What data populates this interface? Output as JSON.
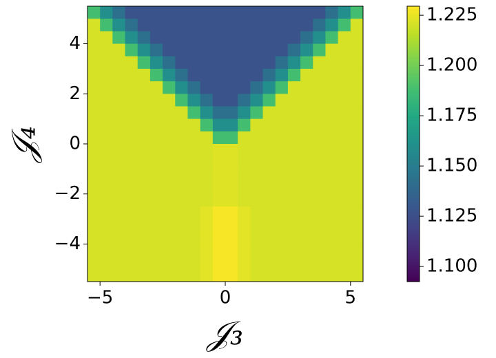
{
  "chart_data": {
    "type": "heatmap",
    "cmap": "viridis",
    "xlabel": "𝒥₃",
    "ylabel": "𝒥₄",
    "xlim": [
      -5.5,
      5.5
    ],
    "ylim": [
      -5.5,
      5.5
    ],
    "xticks": [
      {
        "value": -5,
        "label": "−5"
      },
      0,
      5
    ],
    "yticks": [
      {
        "value": -4,
        "label": "−4"
      },
      {
        "value": -2,
        "label": "−2"
      },
      0,
      2,
      4
    ],
    "clim": [
      1.0925,
      1.2295
    ],
    "cticks": [
      {
        "value": 1.1,
        "label": "1.100"
      },
      1.125,
      {
        "value": 1.15,
        "label": "1.150"
      },
      1.175,
      {
        "value": 1.2,
        "label": "1.200"
      },
      1.225
    ],
    "x": [
      -5.25,
      -4.75,
      -4.25,
      -3.75,
      -3.25,
      -2.75,
      -2.25,
      -1.75,
      -1.25,
      -0.75,
      -0.25,
      0.25,
      0.75,
      1.25,
      1.75,
      2.25,
      2.75,
      3.25,
      3.75,
      4.25,
      4.75,
      5.25
    ],
    "y": [
      5.25,
      4.75,
      4.25,
      3.75,
      3.25,
      2.75,
      2.25,
      1.75,
      1.25,
      0.75,
      0.25,
      -0.25,
      -0.75,
      -1.25,
      -1.75,
      -2.25,
      -2.75,
      -3.25,
      -3.75,
      -4.25,
      -4.75,
      -5.25
    ],
    "z": [
      [
        1.188,
        1.16,
        1.143,
        1.128,
        1.128,
        1.128,
        1.128,
        1.128,
        1.128,
        1.128,
        1.128,
        1.128,
        1.128,
        1.128,
        1.128,
        1.128,
        1.128,
        1.128,
        1.128,
        1.143,
        1.16,
        1.188
      ],
      [
        1.221,
        1.188,
        1.16,
        1.143,
        1.128,
        1.128,
        1.128,
        1.128,
        1.128,
        1.128,
        1.128,
        1.128,
        1.128,
        1.128,
        1.128,
        1.128,
        1.128,
        1.128,
        1.143,
        1.16,
        1.188,
        1.221
      ],
      [
        1.221,
        1.221,
        1.188,
        1.16,
        1.143,
        1.128,
        1.128,
        1.128,
        1.128,
        1.128,
        1.128,
        1.128,
        1.128,
        1.128,
        1.128,
        1.128,
        1.128,
        1.143,
        1.16,
        1.188,
        1.221,
        1.221
      ],
      [
        1.221,
        1.221,
        1.221,
        1.188,
        1.16,
        1.143,
        1.128,
        1.128,
        1.128,
        1.128,
        1.128,
        1.128,
        1.128,
        1.128,
        1.128,
        1.128,
        1.143,
        1.16,
        1.188,
        1.221,
        1.221,
        1.221
      ],
      [
        1.221,
        1.221,
        1.221,
        1.221,
        1.188,
        1.16,
        1.143,
        1.128,
        1.128,
        1.128,
        1.128,
        1.128,
        1.128,
        1.128,
        1.128,
        1.143,
        1.16,
        1.188,
        1.221,
        1.221,
        1.221,
        1.221
      ],
      [
        1.221,
        1.221,
        1.221,
        1.221,
        1.221,
        1.188,
        1.16,
        1.143,
        1.128,
        1.128,
        1.128,
        1.128,
        1.128,
        1.128,
        1.143,
        1.16,
        1.188,
        1.221,
        1.221,
        1.221,
        1.221,
        1.221
      ],
      [
        1.221,
        1.221,
        1.221,
        1.221,
        1.221,
        1.221,
        1.188,
        1.16,
        1.143,
        1.128,
        1.128,
        1.128,
        1.128,
        1.143,
        1.16,
        1.188,
        1.221,
        1.221,
        1.221,
        1.221,
        1.221,
        1.221
      ],
      [
        1.221,
        1.221,
        1.221,
        1.221,
        1.221,
        1.221,
        1.221,
        1.188,
        1.16,
        1.143,
        1.128,
        1.128,
        1.143,
        1.16,
        1.188,
        1.221,
        1.221,
        1.221,
        1.221,
        1.221,
        1.221,
        1.221
      ],
      [
        1.221,
        1.221,
        1.221,
        1.221,
        1.221,
        1.221,
        1.221,
        1.221,
        1.188,
        1.16,
        1.143,
        1.143,
        1.16,
        1.188,
        1.221,
        1.221,
        1.221,
        1.221,
        1.221,
        1.221,
        1.221,
        1.221
      ],
      [
        1.221,
        1.221,
        1.221,
        1.221,
        1.221,
        1.221,
        1.221,
        1.221,
        1.221,
        1.188,
        1.16,
        1.16,
        1.188,
        1.221,
        1.221,
        1.221,
        1.221,
        1.221,
        1.221,
        1.221,
        1.221,
        1.221
      ],
      [
        1.221,
        1.221,
        1.221,
        1.221,
        1.221,
        1.221,
        1.221,
        1.221,
        1.221,
        1.221,
        1.188,
        1.188,
        1.221,
        1.221,
        1.221,
        1.221,
        1.221,
        1.221,
        1.221,
        1.221,
        1.221,
        1.221
      ],
      [
        1.221,
        1.221,
        1.221,
        1.221,
        1.221,
        1.221,
        1.221,
        1.221,
        1.221,
        1.221,
        1.223,
        1.223,
        1.221,
        1.221,
        1.221,
        1.221,
        1.221,
        1.221,
        1.221,
        1.221,
        1.221,
        1.221
      ],
      [
        1.221,
        1.221,
        1.221,
        1.221,
        1.221,
        1.221,
        1.221,
        1.221,
        1.221,
        1.221,
        1.223,
        1.223,
        1.221,
        1.221,
        1.221,
        1.221,
        1.221,
        1.221,
        1.221,
        1.221,
        1.221,
        1.221
      ],
      [
        1.221,
        1.221,
        1.221,
        1.221,
        1.221,
        1.221,
        1.221,
        1.221,
        1.221,
        1.221,
        1.223,
        1.223,
        1.221,
        1.221,
        1.221,
        1.221,
        1.221,
        1.221,
        1.221,
        1.221,
        1.221,
        1.221
      ],
      [
        1.221,
        1.221,
        1.221,
        1.221,
        1.221,
        1.221,
        1.221,
        1.221,
        1.221,
        1.221,
        1.223,
        1.223,
        1.221,
        1.221,
        1.221,
        1.221,
        1.221,
        1.221,
        1.221,
        1.221,
        1.221,
        1.221
      ],
      [
        1.221,
        1.221,
        1.221,
        1.221,
        1.221,
        1.221,
        1.221,
        1.221,
        1.221,
        1.221,
        1.223,
        1.223,
        1.221,
        1.221,
        1.221,
        1.221,
        1.221,
        1.221,
        1.221,
        1.221,
        1.221,
        1.221
      ],
      [
        1.221,
        1.221,
        1.221,
        1.221,
        1.221,
        1.221,
        1.221,
        1.221,
        1.221,
        1.224,
        1.228,
        1.228,
        1.224,
        1.221,
        1.221,
        1.221,
        1.221,
        1.221,
        1.221,
        1.221,
        1.221,
        1.221
      ],
      [
        1.221,
        1.221,
        1.221,
        1.221,
        1.221,
        1.221,
        1.221,
        1.221,
        1.221,
        1.224,
        1.228,
        1.228,
        1.224,
        1.221,
        1.221,
        1.221,
        1.221,
        1.221,
        1.221,
        1.221,
        1.221,
        1.221
      ],
      [
        1.221,
        1.221,
        1.221,
        1.221,
        1.221,
        1.221,
        1.221,
        1.221,
        1.221,
        1.224,
        1.228,
        1.228,
        1.224,
        1.221,
        1.221,
        1.221,
        1.221,
        1.221,
        1.221,
        1.221,
        1.221,
        1.221
      ],
      [
        1.221,
        1.221,
        1.221,
        1.221,
        1.221,
        1.221,
        1.221,
        1.221,
        1.221,
        1.224,
        1.228,
        1.228,
        1.224,
        1.221,
        1.221,
        1.221,
        1.221,
        1.221,
        1.221,
        1.221,
        1.221,
        1.221
      ],
      [
        1.221,
        1.221,
        1.221,
        1.221,
        1.221,
        1.221,
        1.221,
        1.221,
        1.221,
        1.224,
        1.228,
        1.228,
        1.224,
        1.221,
        1.221,
        1.221,
        1.221,
        1.221,
        1.221,
        1.221,
        1.221,
        1.221
      ],
      [
        1.221,
        1.221,
        1.221,
        1.221,
        1.221,
        1.221,
        1.221,
        1.221,
        1.221,
        1.224,
        1.228,
        1.228,
        1.224,
        1.221,
        1.221,
        1.221,
        1.221,
        1.221,
        1.221,
        1.221,
        1.221,
        1.221
      ]
    ]
  }
}
